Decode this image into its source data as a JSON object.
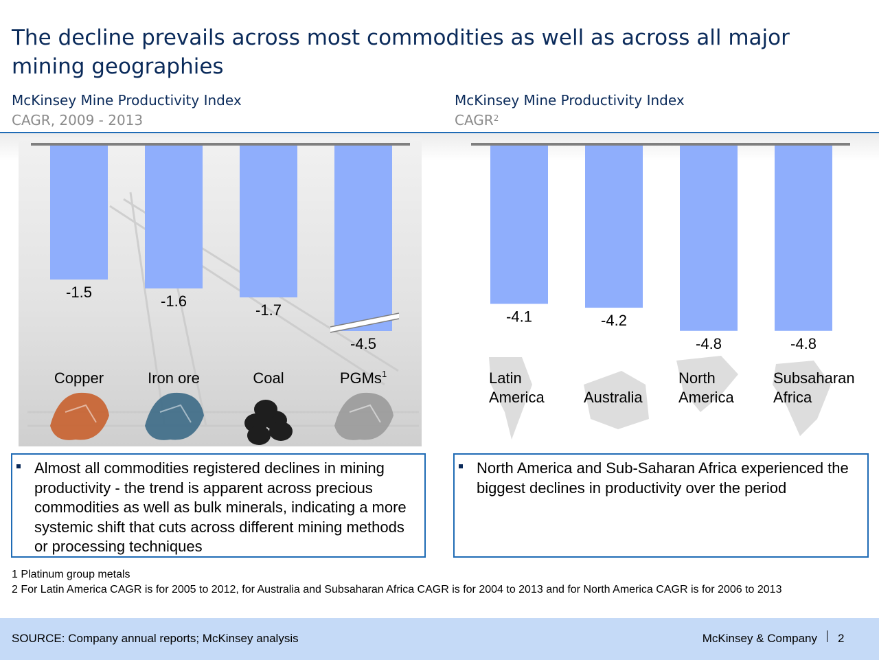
{
  "title": "The decline prevails across most commodities as well as across all major mining geographies",
  "left_panel": {
    "heading": "McKinsey Mine Productivity Index",
    "subheading": "CAGR, 2009 - 2013"
  },
  "right_panel": {
    "heading": "McKinsey Mine Productivity Index",
    "subheading": "CAGR",
    "subheading_sup": "2"
  },
  "chart_data": [
    {
      "type": "bar",
      "orientation": "vertical-downward",
      "categories": [
        "Copper",
        "Iron ore",
        "Coal",
        "PGMs"
      ],
      "category_superscripts": [
        "",
        "",
        "",
        "1"
      ],
      "values": [
        -1.5,
        -1.6,
        -1.7,
        -4.5
      ],
      "value_labels": [
        "-1.5",
        "-1.6",
        "-1.7",
        "-4.5"
      ],
      "axis_break_on": "PGMs",
      "title": "",
      "xlabel": "",
      "ylabel": "",
      "grid": false,
      "bar_color": "#8faefc",
      "icons": [
        "copper-nugget-icon",
        "iron-ore-icon",
        "coal-icon",
        "platinum-nugget-icon"
      ]
    },
    {
      "type": "bar",
      "orientation": "vertical-downward",
      "categories": [
        "Latin America",
        "Australia",
        "North America",
        "Subsaharan Africa"
      ],
      "category_lines": [
        [
          "Latin",
          "America"
        ],
        [
          "",
          "Australia"
        ],
        [
          "North",
          "America"
        ],
        [
          "Subsaharan",
          "Africa"
        ]
      ],
      "values": [
        -4.1,
        -4.2,
        -4.8,
        -4.8
      ],
      "value_labels": [
        "-4.1",
        "-4.2",
        "-4.8",
        "-4.8"
      ],
      "title": "",
      "xlabel": "",
      "ylabel": "",
      "grid": false,
      "bar_color": "#8faefc",
      "icons": [
        "south-america-map-icon",
        "australia-map-icon",
        "north-america-map-icon",
        "africa-map-icon"
      ]
    }
  ],
  "notes": {
    "left": "Almost all commodities registered declines in mining productivity - the trend is apparent across precious commodities as  well as bulk minerals, indicating a more systemic shift that cuts across different mining methods or processing techniques",
    "right": "North America and Sub-Saharan Africa experienced the biggest declines in productivity over the period"
  },
  "footnotes": {
    "fn1": "1 Platinum group metals",
    "fn2": "2 For Latin America CAGR is for 2005 to 2012, for Australia and Subsaharan Africa CAGR is for 2004 to 2013 and for North America CAGR is for 2006 to 2013"
  },
  "footer": {
    "source": "SOURCE: Company annual reports; McKinsey analysis",
    "company": "McKinsey & Company",
    "page": "2"
  },
  "colors": {
    "title": "#0a2a5a",
    "accent_blue": "#1f6bb5",
    "bar": "#8faefc",
    "footer_bg": "#c5daf7"
  }
}
